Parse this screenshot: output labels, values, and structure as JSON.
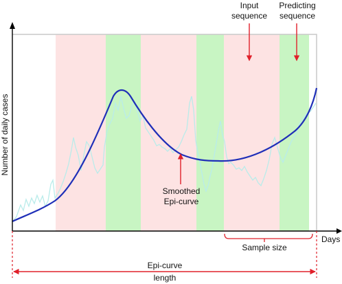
{
  "labels": {
    "y_axis": "Number of  daily cases",
    "x_axis": "Days",
    "input_sequence": [
      "Input",
      "sequence"
    ],
    "predicting_sequence": [
      "Predicting",
      "sequence"
    ],
    "smoothed_curve": [
      "Smoothed",
      "Epi-curve"
    ],
    "sample_size": "Sample size",
    "epi_curve_length": [
      "Epi-curve",
      "length"
    ]
  },
  "bands": [
    {
      "kind": "input",
      "color": "#fde3e3"
    },
    {
      "kind": "predict",
      "color": "#c8f5c3"
    },
    {
      "kind": "input",
      "color": "#fde3e3"
    },
    {
      "kind": "predict",
      "color": "#c8f5c3"
    },
    {
      "kind": "input",
      "color": "#fde3e3"
    },
    {
      "kind": "predict",
      "color": "#c8f5c3"
    }
  ],
  "colors": {
    "smoothed": "#1f2fb8",
    "raw": "#b9ecea",
    "arrow": "#e0202a",
    "axis": "#000000",
    "frame": "#c9c9c9"
  }
}
